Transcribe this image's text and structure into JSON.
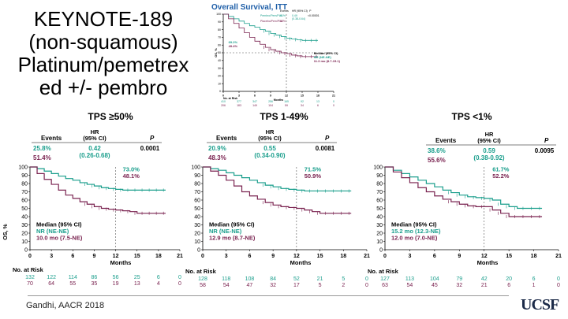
{
  "slide": {
    "title_lines": [
      "KEYNOTE-189",
      "(non-squamous)",
      "Platinum/pemetrex",
      "ed +/- pembro"
    ],
    "citation": "Gandhi, AACR 2018",
    "logo": "UCSF"
  },
  "colors": {
    "pembro": "#1a9e8c",
    "placebo": "#7a2350",
    "header": "#1f5fa8",
    "text": "#000000"
  },
  "chart_data": [
    {
      "type": "line",
      "panel": "overall",
      "title": "Overall Survival, ITT",
      "ylabel": "OS, %",
      "xlabel": "Months",
      "ylim": [
        0,
        100
      ],
      "xlim": [
        0,
        21
      ],
      "x_ticks": [
        0,
        3,
        6,
        9,
        12,
        15,
        18,
        21
      ],
      "y_ticks": [
        0,
        10,
        20,
        30,
        40,
        50,
        60,
        70,
        80,
        90,
        100
      ],
      "legend": {
        "header_events": "Events",
        "header_hr": "HR (95% CI)",
        "header_p": "P",
        "rows": [
          {
            "label": "Pembro/Pem/Plat",
            "events": "31%",
            "hr": "0.49",
            "ci": "(0.38-0.64)",
            "p": "<0.00001"
          },
          {
            "label": "Placebo/Pem/Plat",
            "events": "52%",
            "hr": "",
            "ci": "",
            "p": ""
          }
        ]
      },
      "labels": {
        "pembro": "69.2%",
        "placebo": "49.4%",
        "median": "Median (95% CI)",
        "median_pembro": "NR (NE-NE)",
        "median_placebo": "11.3 mo (8.7-15.1)"
      },
      "series": [
        {
          "name": "Pembro/Pem/Plat",
          "color": "#1a9e8c",
          "x": [
            0,
            1,
            2,
            3,
            4,
            5,
            6,
            7,
            8,
            9,
            10,
            11,
            12,
            13,
            14,
            15,
            16,
            17,
            18
          ],
          "values": [
            100,
            97,
            94,
            91,
            88,
            85,
            83,
            80,
            78,
            75,
            73,
            71,
            69,
            68,
            67,
            66,
            66,
            66,
            66
          ]
        },
        {
          "name": "Placebo/Pem/Plat",
          "color": "#7a2350",
          "x": [
            0,
            1,
            2,
            3,
            4,
            5,
            6,
            7,
            8,
            9,
            10,
            11,
            12,
            13,
            14,
            15,
            16,
            17,
            18
          ],
          "values": [
            100,
            94,
            88,
            82,
            76,
            70,
            65,
            61,
            57,
            54,
            52,
            50,
            49,
            47,
            46,
            45,
            45,
            45,
            45
          ]
        }
      ],
      "risk": {
        "header": "No. at Risk",
        "rows": [
          [
            "410",
            "377",
            "347",
            "256",
            "165",
            "92",
            "13",
            "0"
          ],
          [
            "206",
            "183",
            "149",
            "104",
            "59",
            "34",
            "6",
            "0"
          ]
        ]
      }
    },
    {
      "type": "line",
      "panel": "tps50",
      "title": "TPS ≥50%",
      "ylabel": "OS, %",
      "xlabel": "Months",
      "ylim": [
        0,
        100
      ],
      "xlim": [
        0,
        21
      ],
      "x_ticks": [
        0,
        3,
        6,
        9,
        12,
        15,
        18,
        21
      ],
      "y_ticks": [
        0,
        10,
        20,
        30,
        40,
        50,
        60,
        70,
        80,
        90,
        100
      ],
      "legend": {
        "header_events": "Events",
        "header_hr": "HR\n(95% CI)",
        "header_p": "P",
        "rows": [
          {
            "events": "25.8%",
            "hr": "0.42",
            "ci": "(0.26-0.68)",
            "p": "0.0001"
          },
          {
            "events": "51.4%",
            "hr": "",
            "ci": "",
            "p": ""
          }
        ]
      },
      "labels": {
        "pembro": "73.0%",
        "placebo": "48.1%",
        "median": "Median (95% CI)",
        "median_pembro": "NR (NE-NE)",
        "median_placebo": "10.0 mo (7.5-NE)"
      },
      "series": [
        {
          "name": "Pembro",
          "color": "#1a9e8c",
          "x": [
            0,
            1,
            2,
            3,
            4,
            5,
            6,
            7,
            8,
            9,
            10,
            11,
            12,
            13,
            14,
            15,
            16,
            17,
            18,
            19
          ],
          "values": [
            100,
            98,
            95,
            92,
            89,
            86,
            84,
            81,
            79,
            77,
            75,
            74,
            73,
            72,
            72,
            72,
            72,
            72,
            72,
            72
          ]
        },
        {
          "name": "Placebo",
          "color": "#7a2350",
          "x": [
            0,
            1,
            2,
            3,
            4,
            5,
            6,
            7,
            8,
            9,
            10,
            11,
            12,
            13,
            14,
            15,
            16,
            17,
            18,
            19
          ],
          "values": [
            100,
            92,
            85,
            79,
            72,
            66,
            62,
            58,
            55,
            52,
            50,
            49,
            48,
            47,
            46,
            44,
            44,
            44,
            44,
            44
          ]
        }
      ],
      "risk": {
        "header": "No. at Risk",
        "rows": [
          [
            "132",
            "122",
            "114",
            "86",
            "56",
            "25",
            "6",
            "0"
          ],
          [
            "70",
            "64",
            "55",
            "35",
            "19",
            "13",
            "4",
            "0"
          ]
        ]
      }
    },
    {
      "type": "line",
      "panel": "tps1_49",
      "title": "TPS 1-49%",
      "ylabel": "",
      "xlabel": "Months",
      "ylim": [
        0,
        100
      ],
      "xlim": [
        0,
        21
      ],
      "x_ticks": [
        0,
        3,
        6,
        9,
        12,
        15,
        18,
        21
      ],
      "y_ticks": [
        0,
        10,
        20,
        30,
        40,
        50,
        60,
        70,
        80,
        90,
        100
      ],
      "legend": {
        "header_events": "Events",
        "header_hr": "HR\n(95% CI)",
        "header_p": "P",
        "rows": [
          {
            "events": "20.9%",
            "hr": "0.55",
            "ci": "(0.34-0.90)",
            "p": "0.0081"
          },
          {
            "events": "48.3%",
            "hr": "",
            "ci": "",
            "p": ""
          }
        ]
      },
      "labels": {
        "pembro": "71.5%",
        "placebo": "50.9%",
        "median": "Median (95% CI)",
        "median_pembro": "NR (NE-NE)",
        "median_placebo": "12.9 mo (8.7-NE)"
      },
      "series": [
        {
          "name": "Pembro",
          "color": "#1a9e8c",
          "x": [
            0,
            1,
            2,
            3,
            4,
            5,
            6,
            7,
            8,
            9,
            10,
            11,
            12,
            13,
            14,
            15,
            16,
            17,
            18,
            19
          ],
          "values": [
            100,
            98,
            96,
            93,
            90,
            87,
            84,
            81,
            78,
            76,
            74,
            73,
            72,
            71,
            71,
            71,
            71,
            71,
            71,
            71
          ]
        },
        {
          "name": "Placebo",
          "color": "#7a2350",
          "x": [
            0,
            1,
            2,
            3,
            4,
            5,
            6,
            7,
            8,
            9,
            10,
            11,
            12,
            13,
            14,
            15,
            16,
            17,
            18,
            19
          ],
          "values": [
            100,
            95,
            90,
            84,
            77,
            70,
            65,
            61,
            57,
            54,
            52,
            51,
            50,
            48,
            46,
            44,
            44,
            44,
            44,
            44
          ]
        }
      ],
      "risk": {
        "header": "No. at Risk",
        "rows": [
          [
            "128",
            "118",
            "108",
            "84",
            "52",
            "21",
            "5",
            "0"
          ],
          [
            "58",
            "54",
            "47",
            "32",
            "17",
            "5",
            "2",
            "0"
          ]
        ]
      }
    },
    {
      "type": "line",
      "panel": "tps_lt1",
      "title": "TPS <1%",
      "ylabel": "",
      "xlabel": "Months",
      "ylim": [
        0,
        100
      ],
      "xlim": [
        0,
        21
      ],
      "x_ticks": [
        0,
        3,
        6,
        9,
        12,
        15,
        18,
        21
      ],
      "y_ticks": [
        0,
        10,
        20,
        30,
        40,
        50,
        60,
        70,
        80,
        90,
        100
      ],
      "legend": {
        "header_events": "Events",
        "header_hr": "HR\n(95% CI)",
        "header_p": "P",
        "rows": [
          {
            "events": "38.6%",
            "hr": "0.59",
            "ci": "(0.38-0.92)",
            "p": "0.0095"
          },
          {
            "events": "55.6%",
            "hr": "",
            "ci": "",
            "p": ""
          }
        ]
      },
      "labels": {
        "pembro": "61.7%",
        "placebo": "52.2%",
        "median": "Median (95% CI)",
        "median_pembro": "15.2 mo (12.3-NE)",
        "median_placebo": "12.0 mo (7.0-NE)"
      },
      "series": [
        {
          "name": "Pembro",
          "color": "#1a9e8c",
          "x": [
            0,
            1,
            2,
            3,
            4,
            5,
            6,
            7,
            8,
            9,
            10,
            11,
            12,
            13,
            14,
            15,
            16,
            17,
            18,
            19
          ],
          "values": [
            100,
            96,
            92,
            88,
            84,
            80,
            76,
            72,
            69,
            66,
            64,
            63,
            62,
            60,
            55,
            52,
            50,
            50,
            50,
            50
          ]
        },
        {
          "name": "Placebo",
          "color": "#7a2350",
          "x": [
            0,
            1,
            2,
            3,
            4,
            5,
            6,
            7,
            8,
            9,
            10,
            11,
            12,
            13,
            14,
            15,
            16,
            17,
            18,
            19
          ],
          "values": [
            100,
            94,
            87,
            81,
            75,
            70,
            65,
            61,
            58,
            55,
            53,
            52,
            52,
            48,
            44,
            40,
            40,
            40,
            40,
            40
          ]
        }
      ],
      "risk": {
        "header": "No. at Risk",
        "rows": [
          [
            "127",
            "113",
            "104",
            "79",
            "42",
            "20",
            "6",
            "0"
          ],
          [
            "63",
            "54",
            "45",
            "32",
            "21",
            "6",
            "1",
            "0"
          ]
        ]
      }
    }
  ]
}
